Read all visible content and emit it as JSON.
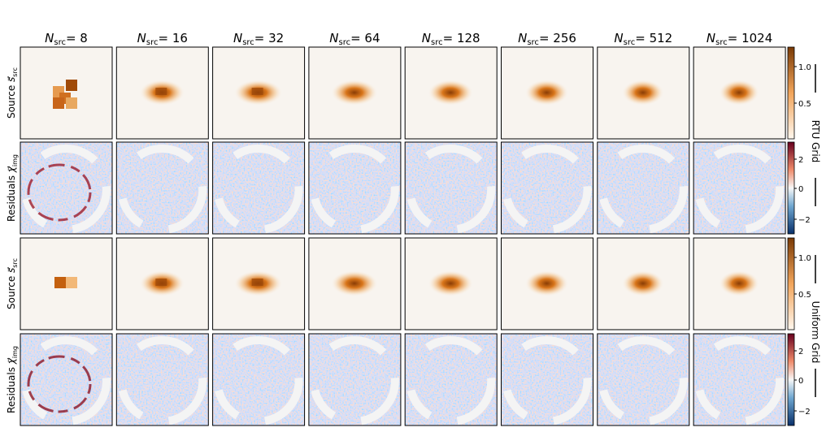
{
  "columns": [
    {
      "symbol": "N",
      "subscript": "src",
      "label": "= 8"
    },
    {
      "symbol": "N",
      "subscript": "src",
      "label": "= 16"
    },
    {
      "symbol": "N",
      "subscript": "src",
      "label": "= 32"
    },
    {
      "symbol": "N",
      "subscript": "src",
      "label": "= 64"
    },
    {
      "symbol": "N",
      "subscript": "src",
      "label": "= 128"
    },
    {
      "symbol": "N",
      "subscript": "src",
      "label": "= 256"
    },
    {
      "symbol": "N",
      "subscript": "src",
      "label": "= 512"
    },
    {
      "symbol": "N",
      "subscript": "src",
      "label": "= 1024"
    }
  ],
  "groups": [
    {
      "name": "RTU Grid",
      "rows": [
        {
          "label": "Source ",
          "symbol": "s⃗",
          "subscript": "src",
          "colorbar_ticks": [
            "1.0",
            "0.5"
          ]
        },
        {
          "label": "Residuals ",
          "symbol": "χ⃗",
          "subscript": "img",
          "colorbar_ticks": [
            "2",
            "0",
            "−2"
          ]
        }
      ]
    },
    {
      "name": "Uniform Grid",
      "rows": [
        {
          "label": "Source ",
          "symbol": "s⃗",
          "subscript": "src",
          "colorbar_ticks": [
            "1.0",
            "0.5"
          ]
        },
        {
          "label": "Residuals ",
          "symbol": "χ⃗",
          "subscript": "img",
          "colorbar_ticks": [
            "2",
            "0",
            "−2"
          ]
        }
      ]
    }
  ]
}
